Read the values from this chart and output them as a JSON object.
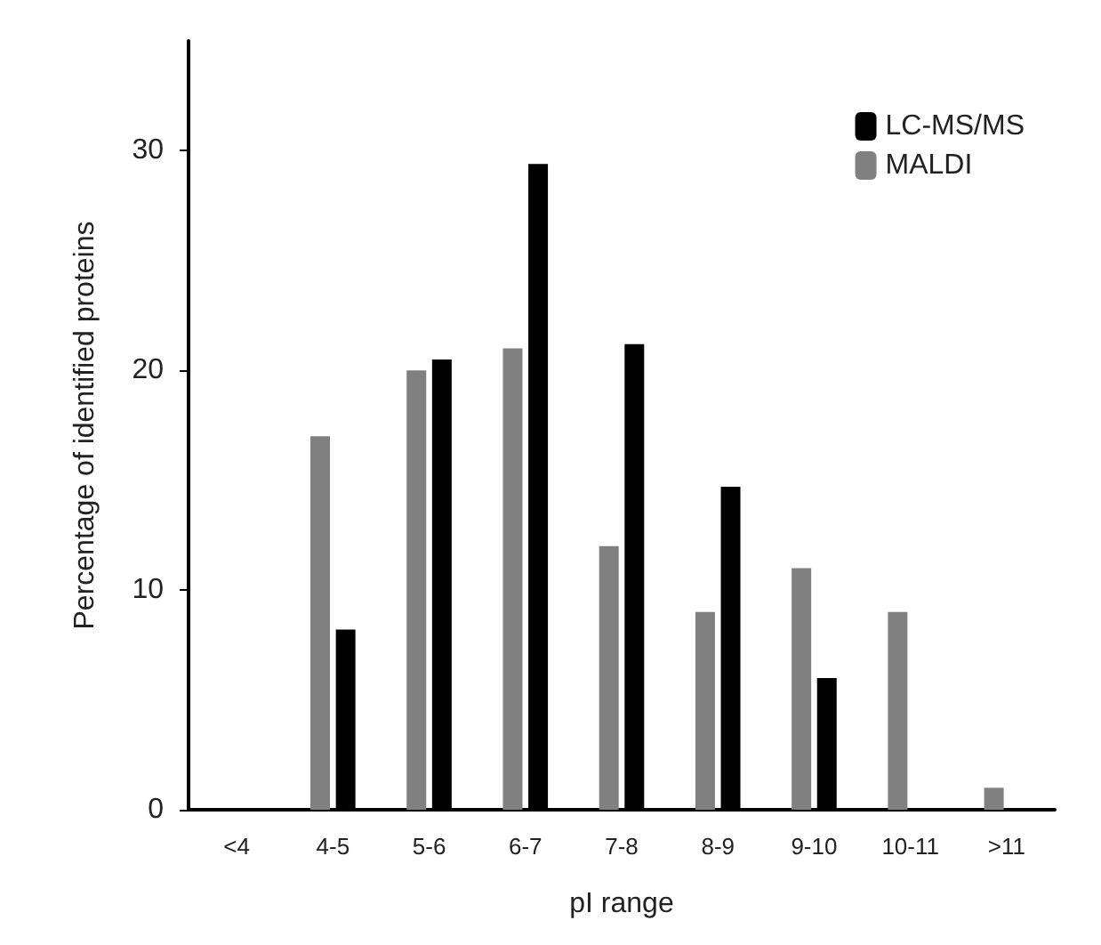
{
  "chart_data": {
    "type": "bar",
    "xlabel": "pI range",
    "ylabel": "Percentage of identified proteins",
    "categories": [
      "<4",
      "4-5",
      "5-6",
      "6-7",
      "7-8",
      "8-9",
      "9-10",
      "10-11",
      ">11"
    ],
    "series": [
      {
        "name": "MALDI",
        "color": "#808080",
        "values": [
          0,
          17,
          20,
          21,
          12,
          9,
          11,
          9,
          1
        ]
      },
      {
        "name": "LC-MS/MS",
        "color": "#000000",
        "values": [
          0,
          8.2,
          20.5,
          29.4,
          21.2,
          14.7,
          6,
          0,
          0
        ]
      }
    ],
    "ylim": [
      0,
      35
    ],
    "yticks": [
      0,
      10,
      20,
      30
    ],
    "grid": false,
    "legend": "top right"
  }
}
